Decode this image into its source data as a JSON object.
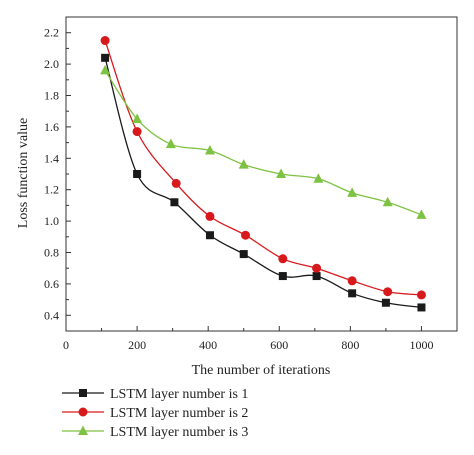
{
  "chart_data": {
    "type": "line",
    "xlabel": "The number of iterations",
    "ylabel": "Loss function value",
    "xlim": [
      0,
      1100
    ],
    "ylim": [
      0.3,
      2.3
    ],
    "xticks": [
      0,
      200,
      400,
      600,
      800,
      1000
    ],
    "yticks": [
      0.4,
      0.6,
      0.8,
      1.0,
      1.2,
      1.4,
      1.6,
      1.8,
      2.0,
      2.2
    ],
    "xtick_labels": [
      "0",
      "200",
      "400",
      "600",
      "800",
      "1000"
    ],
    "ytick_labels": [
      "0.4",
      "0.6",
      "0.8",
      "1.0",
      "1.2",
      "1.4",
      "1.6",
      "1.8",
      "2.0",
      "2.2"
    ],
    "legend_position": "bottom-left, below plot",
    "grid": false,
    "series": [
      {
        "name": "LSTM layer number is 1",
        "color": "#1a1a1a",
        "marker": "square",
        "x": [
          110,
          200,
          305,
          405,
          500,
          610,
          705,
          805,
          900,
          1000
        ],
        "y": [
          2.04,
          1.3,
          1.12,
          0.91,
          0.79,
          0.65,
          0.65,
          0.54,
          0.48,
          0.45
        ]
      },
      {
        "name": "LSTM layer number is 2",
        "color": "#d7191c",
        "marker": "circle",
        "x": [
          110,
          200,
          310,
          405,
          505,
          610,
          705,
          805,
          905,
          1000
        ],
        "y": [
          2.15,
          1.57,
          1.24,
          1.03,
          0.91,
          0.76,
          0.7,
          0.62,
          0.55,
          0.53
        ]
      },
      {
        "name": "LSTM layer number is 3",
        "color": "#7dc242",
        "marker": "triangle",
        "x": [
          110,
          200,
          295,
          405,
          500,
          605,
          710,
          805,
          905,
          1000
        ],
        "y": [
          1.96,
          1.65,
          1.49,
          1.45,
          1.36,
          1.3,
          1.27,
          1.18,
          1.12,
          1.04
        ]
      }
    ]
  }
}
